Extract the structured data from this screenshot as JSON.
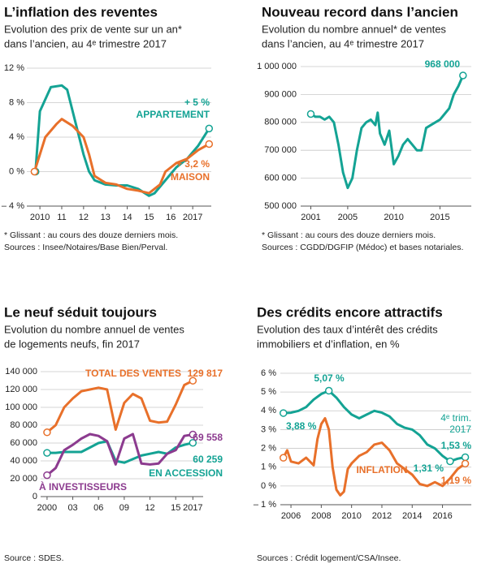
{
  "chart_data": [
    {
      "type": "line",
      "title": "L’inflation des reventes",
      "subtitle": [
        "Evolution des prix de vente sur un an*",
        "dans l’ancien, au 4ᵉ trimestre 2017"
      ],
      "notes": [
        "* Glissant : au cours des douze derniers mois.",
        "Sources : Insee/Notaires/Base Bien/Perval."
      ],
      "xlim": [
        2009.4,
        2017.85
      ],
      "xticks": [
        2010,
        {
          "value": 2011,
          "label": "11"
        },
        {
          "value": 2012,
          "label": "12"
        },
        {
          "value": 2013,
          "label": "13"
        },
        {
          "value": 2014,
          "label": "14"
        },
        {
          "value": 2015,
          "label": "15"
        },
        {
          "value": 2016,
          "label": "16"
        },
        2017
      ],
      "ylim": [
        -4,
        12
      ],
      "yticks": [
        {
          "value": 12,
          "label": "12 %"
        },
        {
          "value": 8,
          "label": "8 %"
        },
        {
          "value": 4,
          "label": "4 %"
        },
        {
          "value": 0,
          "label": "0 %"
        },
        {
          "value": -4,
          "label": "– 4 %"
        }
      ],
      "grid": true,
      "series": [
        {
          "name": "APPARTEMENT",
          "color": "#14a394",
          "x": [
            2009.8,
            2010,
            2010.5,
            2011,
            2011.25,
            2011.5,
            2012,
            2012.25,
            2012.5,
            2013,
            2013.5,
            2014,
            2014.5,
            2015,
            2015.25,
            2015.75,
            2016.25,
            2016.75,
            2017.25,
            2017.75
          ],
          "values": [
            0,
            7,
            9.8,
            10,
            9.5,
            7,
            2,
            0,
            -1,
            -1.5,
            -1.6,
            -1.6,
            -2,
            -2.8,
            -2.5,
            -1,
            0.5,
            1.5,
            3,
            5
          ],
          "value_labels": [
            null,
            null,
            null,
            null,
            null,
            null,
            null,
            null,
            null,
            null,
            null,
            null,
            null,
            null,
            null,
            null,
            null,
            null,
            null,
            "+ 5 %"
          ]
        },
        {
          "name": "MAISON",
          "color": "#e8702a",
          "x": [
            2009.75,
            2010.25,
            2010.75,
            2011,
            2011.5,
            2012,
            2012.25,
            2012.5,
            2013,
            2013.5,
            2014,
            2014.5,
            2015,
            2015.5,
            2015.75,
            2016.25,
            2016.75,
            2017.25,
            2017.75
          ],
          "values": [
            0,
            4,
            5.5,
            6.1,
            5.3,
            4,
            2,
            -0.5,
            -1.3,
            -1.5,
            -2,
            -2.2,
            -2.5,
            -1.5,
            0,
            1,
            1.5,
            2.5,
            3.2
          ],
          "value_labels": [
            null,
            null,
            null,
            null,
            null,
            null,
            null,
            null,
            null,
            null,
            null,
            null,
            null,
            null,
            null,
            null,
            null,
            null,
            "+ 3,2 %"
          ]
        }
      ]
    },
    {
      "type": "line",
      "title": "Nouveau record dans l’ancien",
      "subtitle": [
        "Evolution du nombre annuel* de ventes",
        "dans l’ancien, au 4ᵉ trimestre 2017"
      ],
      "notes": [
        "* Glissant : au cours des douze derniers mois.",
        "Sources : CGDD/DGFIP (Médoc) et bases notariales."
      ],
      "xlim": [
        1999.9,
        2018.4
      ],
      "xticks": [
        2001,
        2005,
        2010,
        2015
      ],
      "ylim": [
        500000,
        1000000
      ],
      "yticks": [
        {
          "value": 1000000,
          "label": "1 000 000"
        },
        {
          "value": 900000,
          "label": "900 000"
        },
        {
          "value": 800000,
          "label": "800 000"
        },
        {
          "value": 700000,
          "label": "700 000"
        },
        {
          "value": 600000,
          "label": "600 000"
        },
        {
          "value": 500000,
          "label": "500 000"
        }
      ],
      "grid": true,
      "series": [
        {
          "color": "#14a394",
          "x": [
            2001,
            2001.5,
            2002,
            2002.5,
            2003,
            2003.5,
            2004,
            2004.5,
            2005,
            2005.5,
            2006,
            2006.5,
            2007,
            2007.5,
            2008,
            2008.25,
            2008.5,
            2009,
            2009.5,
            2010,
            2010.5,
            2011,
            2011.5,
            2012,
            2012.5,
            2013,
            2013.5,
            2014,
            2014.5,
            2015,
            2015.5,
            2016,
            2016.5,
            2017,
            2017.5
          ],
          "values": [
            830000,
            820000,
            820000,
            810000,
            820000,
            800000,
            720000,
            620000,
            565000,
            600000,
            700000,
            780000,
            800000,
            810000,
            790000,
            835000,
            760000,
            720000,
            770000,
            650000,
            680000,
            720000,
            740000,
            720000,
            700000,
            700000,
            780000,
            790000,
            800000,
            810000,
            830000,
            850000,
            900000,
            930000,
            968000
          ],
          "value_labels": [
            null,
            null,
            null,
            null,
            null,
            null,
            null,
            null,
            null,
            null,
            null,
            null,
            null,
            null,
            null,
            null,
            null,
            null,
            null,
            null,
            null,
            null,
            null,
            null,
            null,
            null,
            null,
            null,
            null,
            null,
            null,
            null,
            null,
            null,
            "968 000"
          ]
        }
      ]
    },
    {
      "type": "line",
      "title": "Le neuf séduit toujours",
      "subtitle": [
        "Evolution du nombre annuel de ventes",
        "de logements neufs, fin 2017"
      ],
      "notes": [
        "Source : SDES."
      ],
      "x": [
        2000,
        2001,
        2002,
        2003,
        2004,
        2005,
        2006,
        2007,
        2008,
        2009,
        2010,
        2011,
        2012,
        2013,
        2014,
        2015,
        2016,
        2017
      ],
      "xlim": [
        1999.25,
        2018.2
      ],
      "xticks": [
        2000,
        {
          "value": 2003,
          "label": "03"
        },
        {
          "value": 2006,
          "label": "06"
        },
        {
          "value": 2009,
          "label": "09"
        },
        {
          "value": 2012,
          "label": "12"
        },
        {
          "value": 2015,
          "label": "15"
        },
        2017
      ],
      "ylim": [
        0,
        140000
      ],
      "yticks": [
        {
          "value": 140000,
          "label": "140 000"
        },
        {
          "value": 120000,
          "label": "120 000"
        },
        {
          "value": 100000,
          "label": "100 000"
        },
        {
          "value": 80000,
          "label": "80 000"
        },
        {
          "value": 60000,
          "label": "60 000"
        },
        {
          "value": 40000,
          "label": "40 000"
        },
        {
          "value": 20000,
          "label": "20 000"
        },
        0
      ],
      "grid": true,
      "series": [
        {
          "name": "TOTAL DES VENTES",
          "color": "#e8702a",
          "values": [
            72000,
            80000,
            100000,
            110000,
            118000,
            120000,
            122000,
            120000,
            75000,
            105000,
            115000,
            110000,
            85000,
            83000,
            84000,
            103000,
            125000,
            129817
          ],
          "value_labels": [
            null,
            null,
            null,
            null,
            null,
            null,
            null,
            null,
            null,
            null,
            null,
            null,
            null,
            null,
            null,
            null,
            null,
            "129 817"
          ]
        },
        {
          "name": "EN ACCESSION",
          "color": "#14a394",
          "values": [
            49000,
            49000,
            50000,
            50000,
            50000,
            55000,
            60000,
            62000,
            40000,
            38000,
            42000,
            46000,
            48000,
            50000,
            48000,
            55000,
            58000,
            60259
          ],
          "value_labels": [
            null,
            null,
            null,
            null,
            null,
            null,
            null,
            null,
            null,
            null,
            null,
            null,
            null,
            null,
            null,
            null,
            null,
            "60 259"
          ]
        },
        {
          "name": "À INVESTISSEURS",
          "color": "#8c3b8f",
          "values": [
            24000,
            32000,
            52000,
            58000,
            65000,
            70000,
            68000,
            62000,
            36000,
            65000,
            70000,
            37000,
            36000,
            37000,
            48000,
            52000,
            68000,
            69558
          ],
          "value_labels": [
            null,
            null,
            null,
            null,
            null,
            null,
            null,
            null,
            null,
            null,
            null,
            null,
            null,
            null,
            null,
            null,
            null,
            "69 558"
          ]
        }
      ]
    },
    {
      "type": "line",
      "title": "Des crédits encore attractifs",
      "subtitle": [
        "Evolution des taux d’intérêt des crédits",
        "immobiliers et d’inflation, en %"
      ],
      "notes": [
        "Sources : Crédit logement/CSA/Insee."
      ],
      "annotations": [
        "4ᵉ trim.",
        "2017"
      ],
      "xlim": [
        2005.3,
        2017.9
      ],
      "xticks": [
        2006,
        2008,
        2010,
        2012,
        2014,
        2016
      ],
      "ylim": [
        -1,
        6
      ],
      "yticks": [
        {
          "value": 6,
          "label": "6 %"
        },
        {
          "value": 5,
          "label": "5 %"
        },
        {
          "value": 4,
          "label": "4 %"
        },
        {
          "value": 3,
          "label": "3 %"
        },
        {
          "value": 2,
          "label": "2 %"
        },
        {
          "value": 1,
          "label": "1 %"
        },
        {
          "value": 0,
          "label": "0 %"
        },
        {
          "value": -1,
          "label": "– 1 %"
        }
      ],
      "grid": true,
      "series": [
        {
          "color": "#14a394",
          "x": [
            2005.5,
            2006,
            2006.5,
            2007,
            2007.5,
            2008,
            2008.5,
            2009,
            2009.5,
            2010,
            2010.5,
            2011,
            2011.5,
            2012,
            2012.5,
            2013,
            2013.5,
            2014,
            2014.5,
            2015,
            2015.5,
            2016,
            2016.5,
            2017,
            2017.5
          ],
          "values": [
            3.88,
            3.9,
            4.0,
            4.2,
            4.6,
            4.9,
            5.07,
            4.7,
            4.2,
            3.8,
            3.6,
            3.8,
            4.0,
            3.9,
            3.7,
            3.3,
            3.1,
            3.0,
            2.7,
            2.2,
            2.0,
            1.6,
            1.31,
            1.45,
            1.53
          ],
          "value_labels": [
            "3,88 %",
            null,
            null,
            null,
            null,
            null,
            "5,07 %",
            null,
            null,
            null,
            null,
            null,
            null,
            null,
            null,
            null,
            null,
            null,
            null,
            null,
            null,
            null,
            "1,31 %",
            null,
            "1,53 %"
          ]
        },
        {
          "name": "INFLATION",
          "color": "#e8702a",
          "x": [
            2005.5,
            2005.75,
            2006,
            2006.5,
            2007,
            2007.5,
            2007.75,
            2008,
            2008.25,
            2008.5,
            2008.75,
            2009,
            2009.25,
            2009.5,
            2009.75,
            2010,
            2010.5,
            2011,
            2011.5,
            2012,
            2012.5,
            2013,
            2013.5,
            2014,
            2014.5,
            2015,
            2015.5,
            2016,
            2016.5,
            2017,
            2017.5
          ],
          "values": [
            1.5,
            1.9,
            1.3,
            1.2,
            1.5,
            1.1,
            2.5,
            3.3,
            3.6,
            3.0,
            1.0,
            -0.2,
            -0.5,
            -0.3,
            0.9,
            1.2,
            1.6,
            1.8,
            2.2,
            2.3,
            1.9,
            1.2,
            0.9,
            0.6,
            0.1,
            0.0,
            0.2,
            0.0,
            0.4,
            0.9,
            1.19
          ],
          "value_labels": [
            null,
            null,
            null,
            null,
            null,
            null,
            null,
            null,
            null,
            null,
            null,
            null,
            null,
            null,
            null,
            null,
            null,
            null,
            null,
            null,
            null,
            null,
            null,
            null,
            null,
            null,
            null,
            null,
            null,
            null,
            "1,19 %"
          ]
        }
      ]
    }
  ]
}
